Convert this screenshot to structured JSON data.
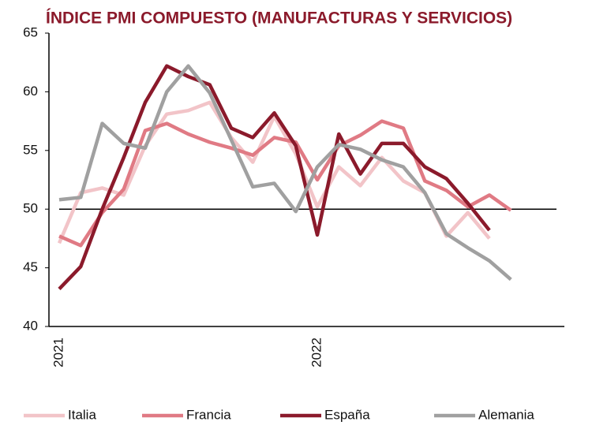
{
  "chart_data": {
    "type": "line",
    "title": "ÍNDICE PMI COMPUESTO (MANUFACTURAS Y SERVICIOS)",
    "categories": [
      "2021",
      null,
      null,
      null,
      null,
      null,
      null,
      null,
      null,
      null,
      null,
      null,
      "2022",
      null,
      null,
      null,
      null,
      null,
      null,
      null,
      null,
      null
    ],
    "series": [
      {
        "name": "Italia",
        "color": "#f2c4c8",
        "values": [
          47.1,
          51.4,
          51.8,
          51.2,
          55.4,
          58.1,
          58.4,
          59.1,
          56.1,
          54.0,
          57.9,
          54.7,
          50.2,
          53.6,
          52.0,
          54.4,
          52.4,
          51.4,
          47.7,
          49.7,
          47.5,
          null
        ]
      },
      {
        "name": "Francia",
        "color": "#e07a84",
        "values": [
          47.7,
          46.9,
          49.7,
          51.7,
          56.7,
          57.3,
          56.4,
          55.7,
          55.2,
          54.6,
          56.1,
          55.7,
          52.5,
          55.4,
          56.3,
          57.5,
          56.9,
          52.4,
          51.6,
          50.2,
          51.2,
          49.9
        ]
      },
      {
        "name": "España",
        "color": "#8b1a2b",
        "values": [
          43.2,
          45.1,
          50.0,
          54.4,
          59.1,
          62.2,
          61.3,
          60.6,
          56.9,
          56.1,
          58.2,
          55.4,
          47.8,
          56.4,
          53.0,
          55.6,
          55.6,
          53.6,
          52.6,
          50.5,
          48.2,
          null
        ]
      },
      {
        "name": "Alemania",
        "color": "#a0a0a0",
        "values": [
          50.8,
          51.0,
          57.3,
          55.6,
          55.2,
          60.0,
          62.2,
          59.9,
          55.9,
          51.9,
          52.2,
          49.8,
          53.6,
          55.5,
          55.1,
          54.2,
          53.6,
          51.4,
          47.9,
          46.7,
          45.6,
          44.0
        ]
      }
    ],
    "ylim": [
      40,
      65
    ],
    "yticks": [
      40,
      45,
      50,
      55,
      60,
      65
    ],
    "reference_line": 50,
    "legend": "bottom"
  }
}
